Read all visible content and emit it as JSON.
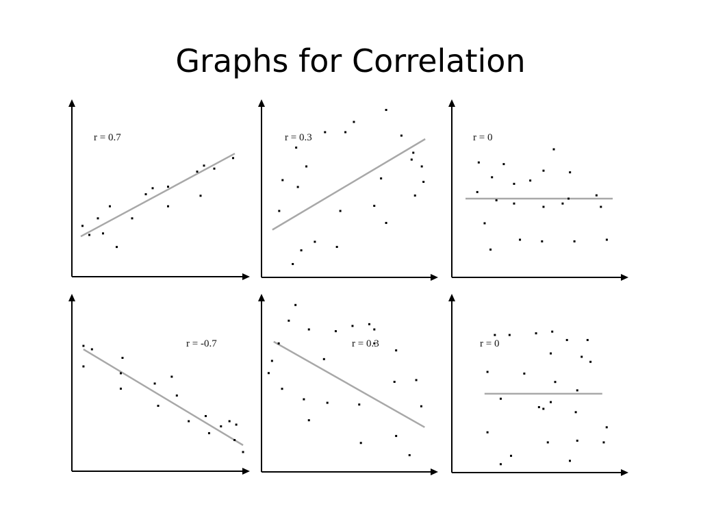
{
  "slide": {
    "title": "Graphs for Correlation"
  },
  "colors": {
    "axis": "#000000",
    "line": "#a8a8a8",
    "point": "#000000"
  },
  "chart_data": [
    {
      "type": "scatter",
      "label": "r = 0.7",
      "points": [
        [
          5,
          31
        ],
        [
          9,
          25
        ],
        [
          14,
          36
        ],
        [
          17,
          26
        ],
        [
          21,
          44
        ],
        [
          25,
          17
        ],
        [
          34,
          36
        ],
        [
          42,
          52
        ],
        [
          46,
          56
        ],
        [
          55,
          57
        ],
        [
          55,
          44
        ],
        [
          72,
          67
        ],
        [
          74,
          51
        ],
        [
          76,
          71
        ],
        [
          82,
          69
        ],
        [
          93,
          76
        ]
      ],
      "trend_line": [
        [
          4,
          24
        ],
        [
          94,
          79
        ]
      ]
    },
    {
      "type": "scatter",
      "label": "r = 0.3",
      "points": [
        [
          10,
          54
        ],
        [
          8,
          36
        ],
        [
          18,
          73
        ],
        [
          19,
          50
        ],
        [
          24,
          62
        ],
        [
          29,
          18
        ],
        [
          35,
          82
        ],
        [
          47,
          82
        ],
        [
          44,
          36
        ],
        [
          64,
          39
        ],
        [
          52,
          88
        ],
        [
          68,
          55
        ],
        [
          71,
          95
        ],
        [
          80,
          80
        ],
        [
          87,
          70
        ],
        [
          88,
          45
        ],
        [
          92,
          62
        ],
        [
          93,
          53
        ],
        [
          86,
          66
        ],
        [
          21,
          13
        ],
        [
          16,
          5
        ],
        [
          42,
          15
        ],
        [
          71,
          29
        ]
      ],
      "trend_line": [
        [
          4,
          25
        ],
        [
          94,
          78
        ]
      ]
    },
    {
      "type": "scatter",
      "label": "r = 0",
      "points": [
        [
          9,
          67
        ],
        [
          18,
          58
        ],
        [
          26,
          66
        ],
        [
          33,
          54
        ],
        [
          44,
          56
        ],
        [
          53,
          62
        ],
        [
          60,
          75
        ],
        [
          71,
          61
        ],
        [
          70,
          45
        ],
        [
          89,
          47
        ],
        [
          8,
          49
        ],
        [
          21,
          44
        ],
        [
          33,
          42
        ],
        [
          53,
          40
        ],
        [
          66,
          42
        ],
        [
          92,
          40
        ],
        [
          13,
          30
        ],
        [
          17,
          14
        ],
        [
          37,
          20
        ],
        [
          52,
          19
        ],
        [
          74,
          19
        ],
        [
          96,
          20
        ]
      ],
      "trend_line": [
        [
          0,
          45
        ],
        [
          100,
          45
        ]
      ]
    },
    {
      "type": "scatter",
      "label": "r = -0.7",
      "points": [
        [
          4,
          74
        ],
        [
          9,
          72
        ],
        [
          4,
          62
        ],
        [
          27,
          67
        ],
        [
          26,
          58
        ],
        [
          26,
          49
        ],
        [
          46,
          52
        ],
        [
          48,
          39
        ],
        [
          56,
          56
        ],
        [
          59,
          45
        ],
        [
          66,
          30
        ],
        [
          76,
          33
        ],
        [
          78,
          23
        ],
        [
          85,
          27
        ],
        [
          90,
          30
        ],
        [
          94,
          28
        ],
        [
          93,
          19
        ],
        [
          98,
          12
        ]
      ],
      "trend_line": [
        [
          4,
          72
        ],
        [
          98,
          16
        ]
      ]
    },
    {
      "type": "scatter",
      "label": "r = 0.3",
      "points": [
        [
          17,
          94
        ],
        [
          13,
          85
        ],
        [
          7,
          72
        ],
        [
          3,
          62
        ],
        [
          25,
          80
        ],
        [
          41,
          79
        ],
        [
          34,
          63
        ],
        [
          51,
          82
        ],
        [
          64,
          72
        ],
        [
          77,
          68
        ],
        [
          61,
          83
        ],
        [
          64,
          80
        ],
        [
          1,
          55
        ],
        [
          9,
          46
        ],
        [
          22,
          40
        ],
        [
          36,
          38
        ],
        [
          55,
          37
        ],
        [
          76,
          50
        ],
        [
          89,
          51
        ],
        [
          92,
          36
        ],
        [
          25,
          28
        ],
        [
          56,
          15
        ],
        [
          77,
          19
        ],
        [
          85,
          8
        ]
      ],
      "trend_line": [
        [
          4,
          73
        ],
        [
          94,
          24
        ]
      ]
    },
    {
      "type": "scatter",
      "label": "r = 0",
      "points": [
        [
          19,
          82
        ],
        [
          29,
          82
        ],
        [
          47,
          83
        ],
        [
          58,
          84
        ],
        [
          68,
          79
        ],
        [
          82,
          79
        ],
        [
          78,
          69
        ],
        [
          57,
          71
        ],
        [
          84,
          66
        ],
        [
          14,
          60
        ],
        [
          39,
          59
        ],
        [
          60,
          54
        ],
        [
          23,
          44
        ],
        [
          57,
          42
        ],
        [
          74,
          36
        ],
        [
          49,
          39
        ],
        [
          52,
          38
        ],
        [
          75,
          49
        ],
        [
          95,
          27
        ],
        [
          14,
          24
        ],
        [
          55,
          18
        ],
        [
          75,
          19
        ],
        [
          93,
          18
        ],
        [
          30,
          10
        ],
        [
          70,
          7
        ],
        [
          23,
          5
        ]
      ],
      "trend_line": [
        [
          12,
          47
        ],
        [
          92,
          47
        ]
      ]
    }
  ]
}
